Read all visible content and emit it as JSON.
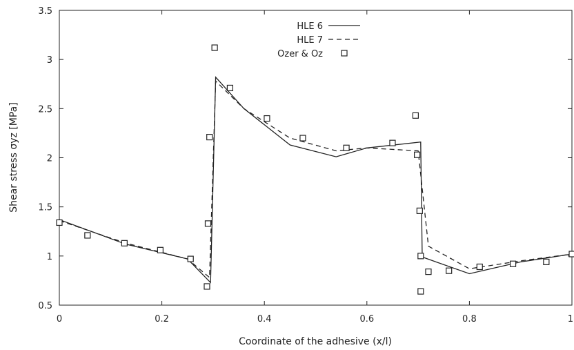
{
  "chart_data": {
    "type": "line",
    "xlabel": "Coordinate of the adhesive (x/l)",
    "ylabel": "Shear stress σyz [MPa]",
    "xlim": [
      0,
      1
    ],
    "ylim": [
      0.5,
      3.5
    ],
    "x_ticks": [
      "0",
      "0.2",
      "0.4",
      "0.6",
      "0.8",
      "1"
    ],
    "y_ticks": [
      "0.5",
      "1",
      "1.5",
      "2",
      "2.5",
      "3",
      "3.5"
    ],
    "grid": false,
    "legend_position": "top-center",
    "series": [
      {
        "name": "HLE 6",
        "style": "solid",
        "color": "#222222",
        "points": [
          [
            0,
            1.37
          ],
          [
            0.13,
            1.12
          ],
          [
            0.25,
            0.97
          ],
          [
            0.295,
            0.73
          ],
          [
            0.305,
            2.82
          ],
          [
            0.36,
            2.5
          ],
          [
            0.45,
            2.13
          ],
          [
            0.54,
            2.01
          ],
          [
            0.6,
            2.1
          ],
          [
            0.705,
            2.16
          ],
          [
            0.708,
            0.99
          ],
          [
            0.8,
            0.82
          ],
          [
            0.9,
            0.94
          ],
          [
            1.0,
            1.02
          ]
        ]
      },
      {
        "name": "HLE 7",
        "style": "dashed",
        "color": "#222222",
        "points": [
          [
            0,
            1.36
          ],
          [
            0.13,
            1.13
          ],
          [
            0.25,
            0.97
          ],
          [
            0.293,
            0.78
          ],
          [
            0.305,
            2.78
          ],
          [
            0.36,
            2.5
          ],
          [
            0.45,
            2.2
          ],
          [
            0.54,
            2.07
          ],
          [
            0.6,
            2.1
          ],
          [
            0.7,
            2.07
          ],
          [
            0.72,
            1.1
          ],
          [
            0.8,
            0.87
          ],
          [
            0.9,
            0.95
          ],
          [
            1.0,
            1.02
          ]
        ]
      },
      {
        "name": "Ozer & Oz",
        "style": "markers",
        "marker": "square",
        "color": "#222222",
        "points": [
          [
            0,
            1.34
          ],
          [
            0.055,
            1.21
          ],
          [
            0.127,
            1.13
          ],
          [
            0.197,
            1.06
          ],
          [
            0.256,
            0.97
          ],
          [
            0.288,
            0.69
          ],
          [
            0.29,
            1.33
          ],
          [
            0.293,
            2.21
          ],
          [
            0.303,
            3.12
          ],
          [
            0.333,
            2.71
          ],
          [
            0.405,
            2.4
          ],
          [
            0.475,
            2.2
          ],
          [
            0.56,
            2.1
          ],
          [
            0.65,
            2.15
          ],
          [
            0.695,
            2.43
          ],
          [
            0.698,
            2.03
          ],
          [
            0.703,
            1.46
          ],
          [
            0.705,
            1.0
          ],
          [
            0.705,
            0.64
          ],
          [
            0.72,
            0.84
          ],
          [
            0.76,
            0.85
          ],
          [
            0.82,
            0.89
          ],
          [
            0.885,
            0.92
          ],
          [
            0.95,
            0.94
          ],
          [
            1.0,
            1.02
          ]
        ]
      }
    ]
  }
}
